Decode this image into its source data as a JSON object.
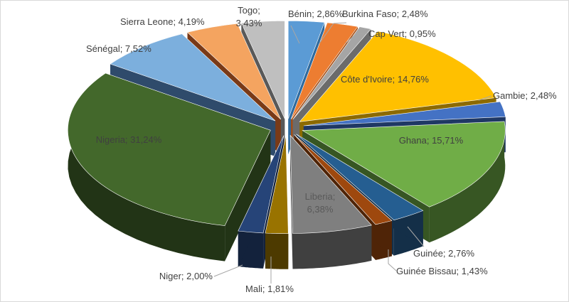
{
  "chart_data": {
    "type": "pie",
    "variant": "3d-exploded",
    "title": "",
    "unit": "%",
    "legend": "none",
    "slices": [
      {
        "name": "Bénin",
        "value": 2.86,
        "label": "Bénin; 2,86%",
        "color": "#5b9bd5",
        "side": "#2e6a9e"
      },
      {
        "name": "Burkina Faso",
        "value": 2.48,
        "label": "Burkina Faso; 2,48%",
        "color": "#ed7d31",
        "side": "#a44d14"
      },
      {
        "name": "Cap Vert",
        "value": 0.95,
        "label": "Cap Vert; 0,95%",
        "color": "#a5a5a5",
        "side": "#6b6b6b"
      },
      {
        "name": "Côte d'Ivoire",
        "value": 14.76,
        "label": "Côte d'Ivoire; 14,76%",
        "color": "#ffc000",
        "side": "#8c6a00"
      },
      {
        "name": "Gambie",
        "value": 2.48,
        "label": "Gambie; 2,48%",
        "color": "#4472c4",
        "side": "#1f3864"
      },
      {
        "name": "Ghana",
        "value": 15.71,
        "label": "Ghana; 15,71%",
        "color": "#70ad47",
        "side": "#375623"
      },
      {
        "name": "Guinée",
        "value": 2.76,
        "label": "Guinée; 2,76%",
        "color": "#255e91",
        "side": "#142f48"
      },
      {
        "name": "Guinée Bissau",
        "value": 1.43,
        "label": "Guinée Bissau; 1,43%",
        "color": "#9e480e",
        "side": "#4f2407"
      },
      {
        "name": "Liberia",
        "value": 6.38,
        "label": "Liberia; 6,38%",
        "color": "#7f7f7f",
        "side": "#404040"
      },
      {
        "name": "Mali",
        "value": 1.81,
        "label": "Mali; 1,81%",
        "color": "#997300",
        "side": "#4d3a00"
      },
      {
        "name": "Niger",
        "value": 2.0,
        "label": "Niger; 2,00%",
        "color": "#264478",
        "side": "#13223c"
      },
      {
        "name": "Nigeria",
        "value": 31.24,
        "label": "Nigeria; 31,24%",
        "color": "#43682b",
        "side": "#223416"
      },
      {
        "name": "Sénégal",
        "value": 7.52,
        "label": "Sénégal; 7,52%",
        "color": "#7cafdd",
        "side": "#2f4b6b"
      },
      {
        "name": "Sierra Leone",
        "value": 4.19,
        "label": "Sierra Leone; 4,19%",
        "color": "#f4a460",
        "side": "#7a3a17"
      },
      {
        "name": "Togo",
        "value": 3.43,
        "label": "Togo; 3,43%",
        "color": "#bfbfbf",
        "side": "#595959"
      }
    ]
  }
}
